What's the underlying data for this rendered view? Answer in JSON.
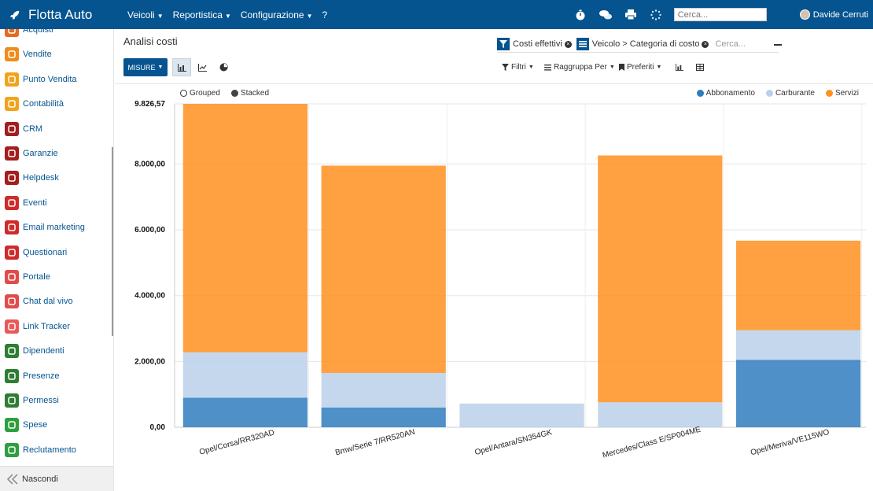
{
  "app": {
    "name": "Flotta Auto"
  },
  "topmenu": [
    {
      "label": "Veicoli",
      "caret": true
    },
    {
      "label": "Reportistica",
      "caret": true
    },
    {
      "label": "Configurazione",
      "caret": true
    },
    {
      "label": "?",
      "caret": false
    }
  ],
  "topbar": {
    "search_placeholder": "Cerca...",
    "user": "Davide Cerruti"
  },
  "sidebar": {
    "items": [
      {
        "label": "Acquisti",
        "color": "#e56b1f",
        "icon": "cart-icon"
      },
      {
        "label": "Vendite",
        "color": "#f08c1c",
        "icon": "chart-line-icon"
      },
      {
        "label": "Punto Vendita",
        "color": "#f0a41c",
        "icon": "pos-icon"
      },
      {
        "label": "Contabilità",
        "color": "#f0a41c",
        "icon": "ledger-icon"
      },
      {
        "label": "CRM",
        "color": "#a31e1e",
        "icon": "handshake-icon"
      },
      {
        "label": "Garanzie",
        "color": "#a31e1e",
        "icon": "shield-icon"
      },
      {
        "label": "Helpdesk",
        "color": "#a31e1e",
        "icon": "headset-icon"
      },
      {
        "label": "Eventi",
        "color": "#cf2b2b",
        "icon": "ticket-icon"
      },
      {
        "label": "Email marketing",
        "color": "#cf2b2b",
        "icon": "paper-plane-icon"
      },
      {
        "label": "Questionari",
        "color": "#cf2b2b",
        "icon": "clipboard-icon"
      },
      {
        "label": "Portale",
        "color": "#e14b4b",
        "icon": "globe-icon"
      },
      {
        "label": "Chat dal vivo",
        "color": "#e14b4b",
        "icon": "chat-icon"
      },
      {
        "label": "Link Tracker",
        "color": "#e85a5a",
        "icon": "link-icon"
      },
      {
        "label": "Dipendenti",
        "color": "#2e7d32",
        "icon": "people-icon"
      },
      {
        "label": "Presenze",
        "color": "#2e7d32",
        "icon": "person-check-icon"
      },
      {
        "label": "Permessi",
        "color": "#2e7d32",
        "icon": "sun-icon"
      },
      {
        "label": "Spese",
        "color": "#2e9e3e",
        "icon": "dollar-icon"
      },
      {
        "label": "Reclutamento",
        "color": "#2e9e3e",
        "icon": "search-person-icon"
      }
    ],
    "hide_label": "Nascondi"
  },
  "view": {
    "title": "Analisi costi",
    "facets": [
      "Costi effettivi",
      "Veicolo > Categoria di costo"
    ],
    "search_placeholder": "Cerca...",
    "measures_label": "MISURE",
    "filters": [
      "Filtri",
      "Raggruppa Per",
      "Preferiti"
    ],
    "mode_grouped": "Grouped",
    "mode_stacked": "Stacked"
  },
  "chart_data": {
    "type": "bar",
    "stacked": true,
    "categories": [
      "Opel/Corsa/RR320AD",
      "Bmw/Serie 7/RR520AN",
      "Opel/Antara/SN354GK",
      "Mercedes/Class E/SP004ME",
      "Opel/Meriva/VE115WO"
    ],
    "series": [
      {
        "name": "Abbonamento",
        "color": "#2f7dbd",
        "values": [
          900,
          600,
          0,
          0,
          2050
        ]
      },
      {
        "name": "Carburante",
        "color": "#bad0ea",
        "values": [
          1380,
          1050,
          720,
          760,
          900
        ]
      },
      {
        "name": "Servizi",
        "color": "#ff9020",
        "values": [
          7546.57,
          6300,
          0,
          7500,
          2720
        ]
      }
    ],
    "ylim": [
      0,
      9826.57
    ],
    "yticks": [
      "0,00",
      "2.000,00",
      "4.000,00",
      "6.000,00",
      "8.000,00",
      "9.826,57"
    ],
    "ytick_values": [
      0,
      2000,
      4000,
      6000,
      8000,
      9826.57
    ],
    "legend_position": "top-right",
    "grid": true
  }
}
